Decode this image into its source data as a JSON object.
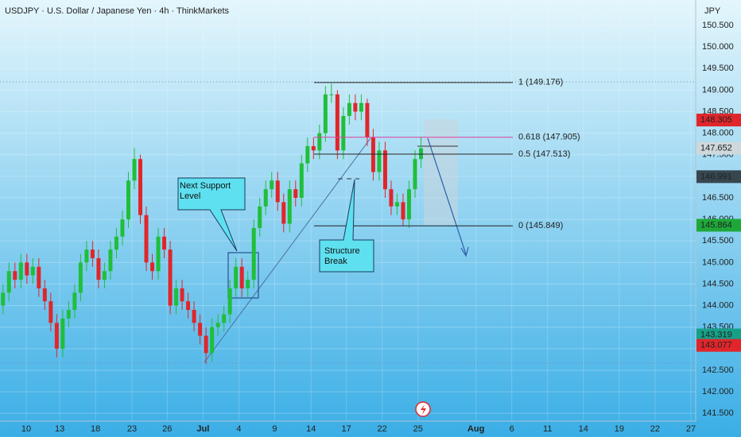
{
  "chart_data": {
    "type": "candlestick",
    "title": "USDJPY · U.S. Dollar / Japanese Yen · 4h · ThinkMarkets",
    "y_axis_label": "JPY",
    "up_color": "#1fbf3a",
    "down_color": "#e0262b",
    "candles": {
      "open": [
        144.0,
        144.3,
        144.8,
        144.6,
        145.0,
        144.7,
        144.9,
        144.4,
        144.1,
        143.6,
        143.0,
        143.7,
        143.9,
        144.3,
        145.0,
        145.3,
        145.1,
        144.6,
        144.8,
        145.3,
        145.6,
        146.0,
        146.9,
        147.4,
        146.1,
        145.0,
        144.8,
        145.6,
        145.3,
        144.0,
        144.4,
        144.1,
        143.9,
        143.6,
        143.3,
        142.9,
        143.5,
        143.6,
        143.8,
        144.4,
        144.9,
        144.4,
        144.6,
        145.8,
        146.3,
        146.7,
        146.9,
        146.4,
        145.9,
        146.7,
        146.5,
        147.3,
        147.7,
        147.6,
        148.0,
        148.9,
        148.9,
        147.6,
        148.4,
        148.7,
        148.5,
        148.7,
        147.9,
        147.1,
        147.6,
        146.7,
        146.3,
        146.4,
        146.0,
        146.7,
        147.4
      ],
      "high": [
        144.5,
        145.0,
        145.0,
        145.2,
        145.2,
        145.1,
        145.1,
        144.6,
        144.3,
        143.8,
        143.9,
        144.1,
        144.5,
        145.2,
        145.5,
        145.5,
        145.3,
        145.0,
        145.5,
        145.8,
        146.2,
        147.1,
        147.66,
        147.5,
        146.3,
        145.2,
        145.8,
        145.8,
        145.5,
        144.6,
        144.6,
        144.3,
        144.1,
        143.8,
        143.5,
        143.7,
        143.8,
        144.0,
        144.6,
        145.1,
        145.1,
        144.8,
        146.0,
        146.5,
        146.9,
        147.1,
        147.1,
        146.6,
        146.9,
        146.9,
        147.5,
        147.9,
        147.9,
        148.2,
        149.1,
        149.15,
        149.0,
        148.6,
        148.9,
        148.9,
        148.9,
        148.8,
        148.1,
        147.8,
        147.8,
        146.9,
        146.6,
        146.6,
        146.9,
        147.6,
        147.9
      ],
      "low": [
        143.8,
        144.1,
        144.4,
        144.4,
        144.5,
        144.5,
        144.2,
        143.9,
        143.4,
        142.8,
        142.8,
        143.5,
        143.7,
        144.1,
        144.8,
        144.9,
        144.4,
        144.4,
        144.6,
        145.1,
        145.4,
        145.8,
        146.7,
        145.9,
        144.8,
        144.6,
        144.6,
        145.1,
        143.8,
        143.8,
        143.9,
        143.7,
        143.4,
        143.1,
        142.65,
        142.7,
        143.3,
        143.4,
        143.6,
        144.2,
        144.2,
        144.2,
        144.4,
        145.6,
        146.1,
        146.5,
        146.2,
        145.7,
        145.7,
        146.3,
        146.3,
        147.1,
        147.4,
        147.4,
        147.8,
        148.7,
        147.4,
        147.4,
        148.2,
        148.3,
        148.3,
        147.7,
        146.9,
        146.9,
        146.5,
        146.1,
        146.1,
        145.85,
        145.8,
        146.5,
        147.2
      ],
      "close": [
        144.3,
        144.8,
        144.6,
        145.0,
        144.7,
        144.9,
        144.4,
        144.1,
        143.6,
        143.0,
        143.7,
        143.9,
        144.3,
        145.0,
        145.3,
        145.1,
        144.6,
        144.8,
        145.3,
        145.6,
        146.0,
        146.9,
        147.4,
        146.1,
        145.0,
        144.8,
        145.6,
        145.3,
        144.0,
        144.4,
        144.1,
        143.9,
        143.6,
        143.3,
        142.9,
        143.5,
        143.6,
        143.8,
        144.4,
        144.9,
        144.4,
        144.6,
        145.8,
        146.3,
        146.7,
        146.9,
        146.4,
        145.9,
        146.7,
        146.5,
        147.3,
        147.7,
        147.6,
        148.0,
        148.9,
        148.9,
        147.6,
        148.4,
        148.7,
        148.5,
        148.7,
        147.9,
        147.1,
        147.6,
        146.7,
        146.3,
        146.4,
        146.0,
        146.7,
        147.4,
        147.65
      ]
    },
    "xlim": [
      -0.5,
      116
    ],
    "xticks": [
      {
        "value": 3.9,
        "label": "10"
      },
      {
        "value": 9.5,
        "label": "13"
      },
      {
        "value": 15.5,
        "label": "18"
      },
      {
        "value": 21.6,
        "label": "23"
      },
      {
        "value": 27.5,
        "label": "26"
      },
      {
        "value": 33.5,
        "label": "Jul"
      },
      {
        "value": 39.5,
        "label": "4"
      },
      {
        "value": 45.5,
        "label": "9"
      },
      {
        "value": 51.6,
        "label": "14"
      },
      {
        "value": 57.5,
        "label": "17"
      },
      {
        "value": 63.5,
        "label": "22"
      },
      {
        "value": 69.5,
        "label": "25"
      },
      {
        "value": 79.2,
        "label": "Aug"
      },
      {
        "value": 85.2,
        "label": "6"
      },
      {
        "value": 91.2,
        "label": "11"
      },
      {
        "value": 97.2,
        "label": "14"
      },
      {
        "value": 103.2,
        "label": "19"
      },
      {
        "value": 109.2,
        "label": "22"
      },
      {
        "value": 115.2,
        "label": "27"
      }
    ],
    "ylim": [
      141.32,
      151.09
    ],
    "yticks": [
      {
        "value": 141.5,
        "label": "141.500"
      },
      {
        "value": 142.0,
        "label": "142.000"
      },
      {
        "value": 142.5,
        "label": "142.500"
      },
      {
        "value": 143.0,
        "label": "143.000"
      },
      {
        "value": 143.5,
        "label": "143.500"
      },
      {
        "value": 144.0,
        "label": "144.000"
      },
      {
        "value": 144.5,
        "label": "144.500"
      },
      {
        "value": 145.0,
        "label": "145.000"
      },
      {
        "value": 145.5,
        "label": "145.500"
      },
      {
        "value": 146.0,
        "label": "146.000"
      },
      {
        "value": 146.5,
        "label": "146.500"
      },
      {
        "value": 147.0,
        "label": "147.000"
      },
      {
        "value": 147.5,
        "label": "147.500"
      },
      {
        "value": 148.0,
        "label": "148.000"
      },
      {
        "value": 148.5,
        "label": "148.500"
      },
      {
        "value": 149.0,
        "label": "149.000"
      },
      {
        "value": 149.5,
        "label": "149.500"
      },
      {
        "value": 150.0,
        "label": "150.000"
      },
      {
        "value": 150.5,
        "label": "150.500"
      }
    ],
    "price_labels": [
      {
        "value": 148.305,
        "label": "148.305",
        "color": "#e0262b"
      },
      {
        "value": 147.652,
        "label": "147.652",
        "color": "#cfd8dc"
      },
      {
        "value": 146.991,
        "label": "146.991",
        "color": "#37474f"
      },
      {
        "value": 145.864,
        "label": "145.864",
        "color": "#1ea83a"
      },
      {
        "value": 143.319,
        "label": "143.319",
        "color": "#16a085"
      },
      {
        "value": 143.077,
        "label": "143.077",
        "color": "#e0262b"
      }
    ],
    "fib_levels": [
      {
        "value": 149.176,
        "label": "1 (149.176)",
        "color": "#222222"
      },
      {
        "value": 147.905,
        "label": "0.618 (147.905)",
        "color": "#e040a0"
      },
      {
        "value": 147.513,
        "label": "0.5 (147.513)",
        "color": "#222222"
      },
      {
        "value": 145.849,
        "label": "0 (145.849)",
        "color": "#222222"
      }
    ],
    "annotations": [
      "Next Support Level",
      "Structure Break"
    ]
  }
}
